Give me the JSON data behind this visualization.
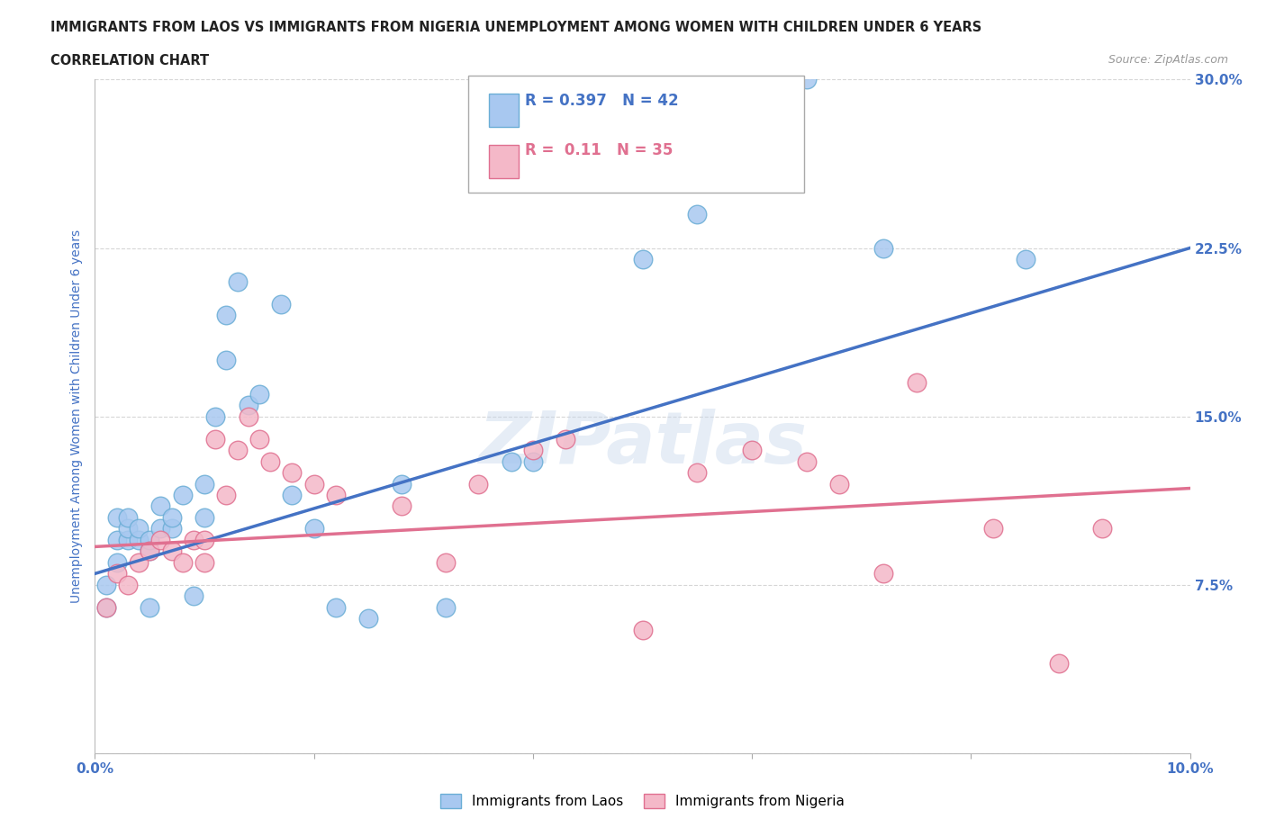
{
  "title_line1": "IMMIGRANTS FROM LAOS VS IMMIGRANTS FROM NIGERIA UNEMPLOYMENT AMONG WOMEN WITH CHILDREN UNDER 6 YEARS",
  "title_line2": "CORRELATION CHART",
  "source_text": "Source: ZipAtlas.com",
  "ylabel": "Unemployment Among Women with Children Under 6 years",
  "xlim": [
    0.0,
    0.1
  ],
  "ylim": [
    0.0,
    0.3
  ],
  "xticks": [
    0.0,
    0.02,
    0.04,
    0.06,
    0.08,
    0.1
  ],
  "yticks": [
    0.0,
    0.075,
    0.15,
    0.225,
    0.3
  ],
  "xtick_labels": [
    "0.0%",
    "",
    "",
    "",
    "",
    "10.0%"
  ],
  "ytick_labels": [
    "",
    "7.5%",
    "15.0%",
    "22.5%",
    "30.0%"
  ],
  "watermark": "ZIPatlas",
  "laos_color": "#a8c8f0",
  "laos_edge_color": "#6baed6",
  "nigeria_color": "#f4b8c8",
  "nigeria_edge_color": "#e07090",
  "laos_line_color": "#4472c4",
  "nigeria_line_color": "#e07090",
  "laos_R": 0.397,
  "laos_N": 42,
  "nigeria_R": 0.11,
  "nigeria_N": 35,
  "laos_line_x0": 0.0,
  "laos_line_y0": 0.08,
  "laos_line_x1": 0.1,
  "laos_line_y1": 0.225,
  "nigeria_line_x0": 0.0,
  "nigeria_line_y0": 0.092,
  "nigeria_line_x1": 0.1,
  "nigeria_line_y1": 0.118,
  "laos_x": [
    0.001,
    0.001,
    0.002,
    0.002,
    0.002,
    0.003,
    0.003,
    0.003,
    0.004,
    0.004,
    0.005,
    0.005,
    0.005,
    0.006,
    0.006,
    0.007,
    0.007,
    0.008,
    0.009,
    0.01,
    0.01,
    0.011,
    0.012,
    0.012,
    0.013,
    0.014,
    0.015,
    0.017,
    0.018,
    0.02,
    0.022,
    0.025,
    0.028,
    0.032,
    0.038,
    0.04,
    0.042,
    0.05,
    0.055,
    0.065,
    0.072,
    0.085
  ],
  "laos_y": [
    0.065,
    0.075,
    0.095,
    0.105,
    0.085,
    0.095,
    0.1,
    0.105,
    0.095,
    0.1,
    0.065,
    0.09,
    0.095,
    0.1,
    0.11,
    0.1,
    0.105,
    0.115,
    0.07,
    0.105,
    0.12,
    0.15,
    0.195,
    0.175,
    0.21,
    0.155,
    0.16,
    0.2,
    0.115,
    0.1,
    0.065,
    0.06,
    0.12,
    0.065,
    0.13,
    0.13,
    0.265,
    0.22,
    0.24,
    0.3,
    0.225,
    0.22
  ],
  "nigeria_x": [
    0.001,
    0.002,
    0.003,
    0.004,
    0.005,
    0.006,
    0.007,
    0.008,
    0.009,
    0.01,
    0.01,
    0.011,
    0.012,
    0.013,
    0.014,
    0.015,
    0.016,
    0.018,
    0.02,
    0.022,
    0.028,
    0.032,
    0.035,
    0.04,
    0.043,
    0.05,
    0.055,
    0.06,
    0.065,
    0.068,
    0.072,
    0.075,
    0.082,
    0.088,
    0.092
  ],
  "nigeria_y": [
    0.065,
    0.08,
    0.075,
    0.085,
    0.09,
    0.095,
    0.09,
    0.085,
    0.095,
    0.095,
    0.085,
    0.14,
    0.115,
    0.135,
    0.15,
    0.14,
    0.13,
    0.125,
    0.12,
    0.115,
    0.11,
    0.085,
    0.12,
    0.135,
    0.14,
    0.055,
    0.125,
    0.135,
    0.13,
    0.12,
    0.08,
    0.165,
    0.1,
    0.04,
    0.1
  ]
}
